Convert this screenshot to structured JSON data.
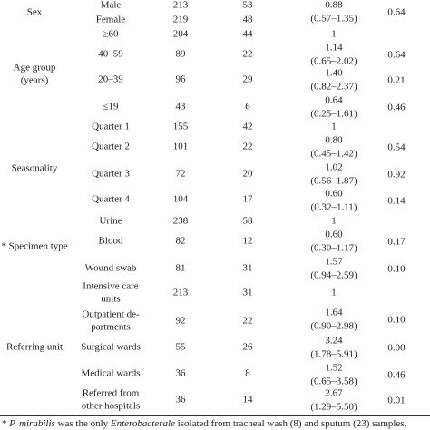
{
  "groups": [
    {
      "label": [
        "Sex"
      ]
    },
    {
      "label": [
        "Age group",
        "(years)"
      ]
    },
    {
      "label": [
        "Seasonality"
      ]
    },
    {
      "label": [
        "* Specimen type"
      ]
    },
    {
      "label": [
        "Referring unit"
      ]
    }
  ],
  "rows": [
    {
      "label": [
        "Male"
      ],
      "count_a": "213",
      "count_b": "53",
      "or": [
        "0.88",
        "(0.57–1.35)"
      ],
      "p": "0.64"
    },
    {
      "label": [
        "Female"
      ],
      "count_a": "219",
      "count_b": "48"
    },
    {
      "label": [
        "≥60"
      ],
      "count_a": "204",
      "count_b": "44",
      "or": [
        "1"
      ]
    },
    {
      "label": [
        "40–59"
      ],
      "count_a": "89",
      "count_b": "22",
      "or": [
        "1.14",
        "(0.65–2.02)"
      ],
      "p": "0.64"
    },
    {
      "label": [
        "20–39"
      ],
      "count_a": "96",
      "count_b": "29",
      "or": [
        "1.40",
        "(0.82–2.37)"
      ],
      "p": "0.21"
    },
    {
      "label": [
        "≤19"
      ],
      "count_a": "43",
      "count_b": "6",
      "or": [
        "0.64",
        "(0.25–1.61)"
      ],
      "p": "0.46"
    },
    {
      "label": [
        "Quarter 1"
      ],
      "count_a": "155",
      "count_b": "42",
      "or": [
        "1"
      ]
    },
    {
      "label": [
        "Quarter 2"
      ],
      "count_a": "101",
      "count_b": "22",
      "or": [
        "0.80",
        "(0.45–1.42)"
      ],
      "p": "0.54"
    },
    {
      "label": [
        "Quarter 3"
      ],
      "count_a": "72",
      "count_b": "20",
      "or": [
        "1.02",
        "(0.56–1.87)"
      ],
      "p": "0.92"
    },
    {
      "label": [
        "Quarter 4"
      ],
      "count_a": "104",
      "count_b": "17",
      "or": [
        "0.60",
        "(0.32–1.11)"
      ],
      "p": "0.14"
    },
    {
      "label": [
        "Urine"
      ],
      "count_a": "238",
      "count_b": "58",
      "or": [
        "1"
      ]
    },
    {
      "label": [
        "Blood"
      ],
      "count_a": "82",
      "count_b": "12",
      "or": [
        "0.60",
        "(0.30–1.17)"
      ],
      "p": "0.17"
    },
    {
      "label": [
        "Wound swab"
      ],
      "count_a": "81",
      "count_b": "31",
      "or": [
        "1.57",
        "(0.94–2.59)"
      ],
      "p": "0.10"
    },
    {
      "label": [
        "Intensive care",
        "units"
      ],
      "count_a": "213",
      "count_b": "31",
      "or": [
        "1"
      ]
    },
    {
      "label": [
        "Outpatient de-",
        "partments"
      ],
      "count_a": "92",
      "count_b": "22",
      "or": [
        "1.64",
        "(0.90–2.98)"
      ],
      "p": "0.10"
    },
    {
      "label": [
        "Surgical wards"
      ],
      "count_a": "55",
      "count_b": "26",
      "or": [
        "3.24",
        "(1.78–5.91)"
      ],
      "p": "0.00"
    },
    {
      "label": [
        "Medical wards"
      ],
      "count_a": "36",
      "count_b": "8",
      "or": [
        "1.52",
        "(0.65–3.58)"
      ],
      "p": "0.46"
    },
    {
      "label": [
        "Referred from",
        "other hospitals"
      ],
      "count_a": "36",
      "count_b": "14",
      "or": [
        "2.67",
        "(1.29–5.50)"
      ],
      "p": "0.01"
    }
  ],
  "footnote": {
    "parts": [
      "* ",
      "P. mirabilis",
      " was the only ",
      "Enterobacterale",
      " isolated from tracheal wash (8) and sputum (23) samples,"
    ]
  }
}
